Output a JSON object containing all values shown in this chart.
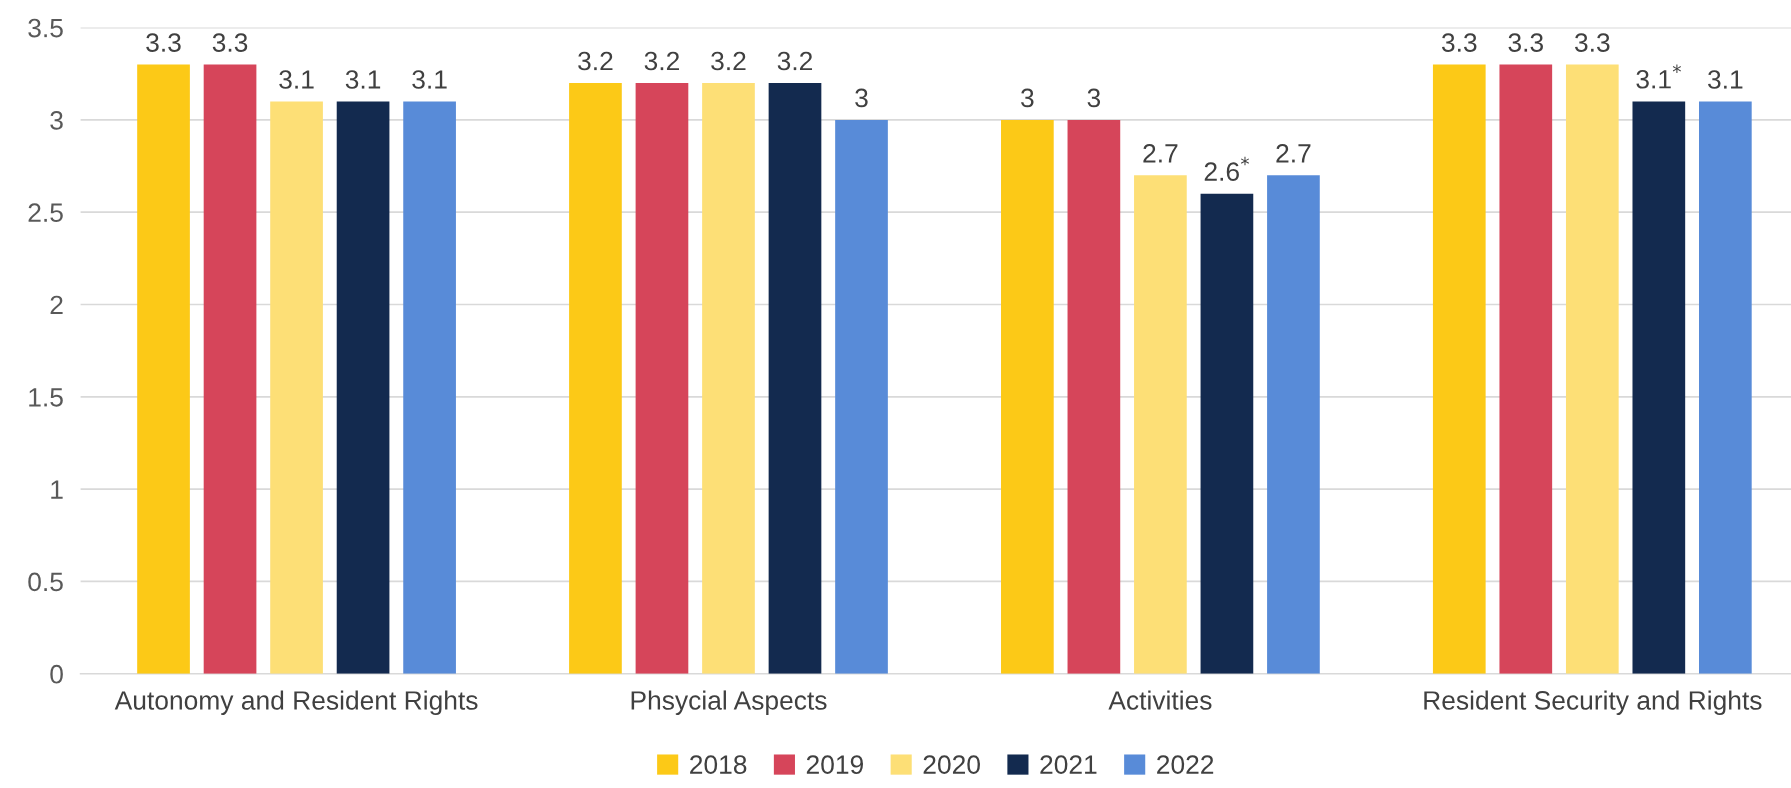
{
  "chart_data": {
    "type": "bar",
    "categories": [
      "Autonomy and Resident Rights",
      "Phsycial Aspects",
      "Activities",
      "Resident Security and Rights"
    ],
    "series": [
      {
        "name": "2018",
        "color": "#fcc917",
        "values": [
          3.3,
          3.2,
          3,
          3.3
        ],
        "value_labels": [
          "3.3",
          "3.2",
          "3",
          "3.3"
        ]
      },
      {
        "name": "2019",
        "color": "#d6455a",
        "values": [
          3.3,
          3.2,
          3,
          3.3
        ],
        "value_labels": [
          "3.3",
          "3.2",
          "3",
          "3.3"
        ]
      },
      {
        "name": "2020",
        "color": "#fddf76",
        "values": [
          3.1,
          3.2,
          2.7,
          3.3
        ],
        "value_labels": [
          "3.1",
          "3.2",
          "2.7",
          "3.3"
        ]
      },
      {
        "name": "2021",
        "color": "#132a4f",
        "values": [
          3.1,
          3.2,
          2.6,
          3.1
        ],
        "value_labels": [
          "3.1",
          "3.2",
          "2.6$^{*}$",
          "3.1$^{*}$"
        ]
      },
      {
        "name": "2022",
        "color": "#588bd8",
        "values": [
          3.1,
          3,
          2.7,
          3.1
        ],
        "value_labels": [
          "3.1",
          "3",
          "2.7",
          "3.1"
        ]
      }
    ],
    "ylim": [
      0,
      3.5
    ],
    "yticks": [
      0,
      0.5,
      1,
      1.5,
      2,
      2.5,
      3,
      3.5
    ],
    "grid": "y",
    "legend": "bottom"
  }
}
